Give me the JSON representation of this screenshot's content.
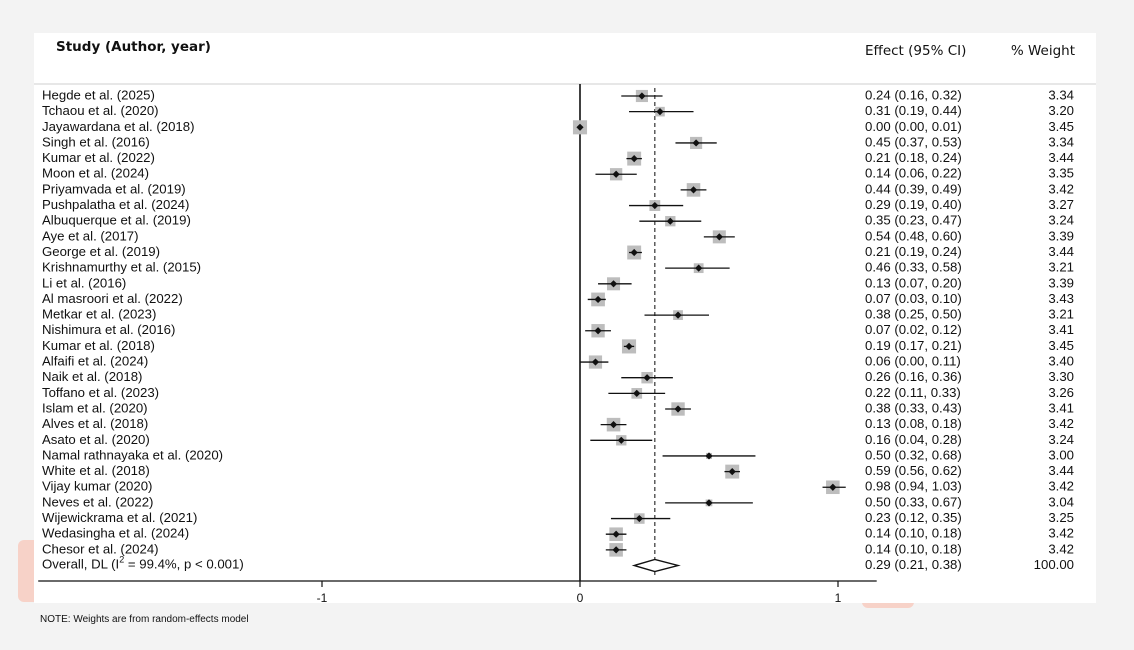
{
  "headers": {
    "study": "Study (Author, year)",
    "effect": "Effect (95% CI)",
    "weight": "% Weight"
  },
  "note": "NOTE: Weights are from random-effects model",
  "chart_data": {
    "type": "forest",
    "title": "",
    "xlabel": "",
    "ylabel": "",
    "x_ticks": [
      -1,
      0,
      1
    ],
    "x_tick_labels": [
      "-1",
      "0",
      "1"
    ],
    "xlim": [
      -2.1,
      1.15
    ],
    "null_line": 0,
    "pooled_line": 0.29,
    "studies": [
      {
        "label": "Hegde et al. (2025)",
        "es": 0.24,
        "lo": 0.16,
        "hi": 0.32,
        "ci_text": "0.24 (0.16, 0.32)",
        "weight": "3.34"
      },
      {
        "label": "Tchaou et al. (2020)",
        "es": 0.31,
        "lo": 0.19,
        "hi": 0.44,
        "ci_text": "0.31 (0.19, 0.44)",
        "weight": "3.20"
      },
      {
        "label": "Jayawardana et al. (2018)",
        "es": 0.0,
        "lo": 0.0,
        "hi": 0.01,
        "ci_text": "0.00 (0.00, 0.01)",
        "weight": "3.45"
      },
      {
        "label": "Singh et al. (2016)",
        "es": 0.45,
        "lo": 0.37,
        "hi": 0.53,
        "ci_text": "0.45 (0.37, 0.53)",
        "weight": "3.34"
      },
      {
        "label": "Kumar et al. (2022)",
        "es": 0.21,
        "lo": 0.18,
        "hi": 0.24,
        "ci_text": "0.21 (0.18, 0.24)",
        "weight": "3.44"
      },
      {
        "label": "Moon et al. (2024)",
        "es": 0.14,
        "lo": 0.06,
        "hi": 0.22,
        "ci_text": "0.14 (0.06, 0.22)",
        "weight": "3.35"
      },
      {
        "label": "Priyamvada et al. (2019)",
        "es": 0.44,
        "lo": 0.39,
        "hi": 0.49,
        "ci_text": "0.44 (0.39, 0.49)",
        "weight": "3.42"
      },
      {
        "label": "Pushpalatha et al. (2024)",
        "es": 0.29,
        "lo": 0.19,
        "hi": 0.4,
        "ci_text": "0.29 (0.19, 0.40)",
        "weight": "3.27"
      },
      {
        "label": "Albuquerque et al. (2019)",
        "es": 0.35,
        "lo": 0.23,
        "hi": 0.47,
        "ci_text": "0.35 (0.23, 0.47)",
        "weight": "3.24"
      },
      {
        "label": "Aye et al. (2017)",
        "es": 0.54,
        "lo": 0.48,
        "hi": 0.6,
        "ci_text": "0.54 (0.48, 0.60)",
        "weight": "3.39"
      },
      {
        "label": "George et al. (2019)",
        "es": 0.21,
        "lo": 0.19,
        "hi": 0.24,
        "ci_text": "0.21 (0.19, 0.24)",
        "weight": "3.44"
      },
      {
        "label": "Krishnamurthy et al. (2015)",
        "es": 0.46,
        "lo": 0.33,
        "hi": 0.58,
        "ci_text": "0.46 (0.33, 0.58)",
        "weight": "3.21"
      },
      {
        "label": "Li et al. (2016)",
        "es": 0.13,
        "lo": 0.07,
        "hi": 0.2,
        "ci_text": "0.13 (0.07, 0.20)",
        "weight": "3.39"
      },
      {
        "label": "Al masroori et al. (2022)",
        "es": 0.07,
        "lo": 0.03,
        "hi": 0.1,
        "ci_text": "0.07 (0.03, 0.10)",
        "weight": "3.43"
      },
      {
        "label": "Metkar et al. (2023)",
        "es": 0.38,
        "lo": 0.25,
        "hi": 0.5,
        "ci_text": "0.38 (0.25, 0.50)",
        "weight": "3.21"
      },
      {
        "label": "Nishimura et al. (2016)",
        "es": 0.07,
        "lo": 0.02,
        "hi": 0.12,
        "ci_text": "0.07 (0.02, 0.12)",
        "weight": "3.41"
      },
      {
        "label": "Kumar et al. (2018)",
        "es": 0.19,
        "lo": 0.17,
        "hi": 0.21,
        "ci_text": "0.19 (0.17, 0.21)",
        "weight": "3.45"
      },
      {
        "label": "Alfaifi et al. (2024)",
        "es": 0.06,
        "lo": 0.0,
        "hi": 0.11,
        "ci_text": "0.06 (0.00, 0.11)",
        "weight": "3.40"
      },
      {
        "label": "Naik et al. (2018)",
        "es": 0.26,
        "lo": 0.16,
        "hi": 0.36,
        "ci_text": "0.26 (0.16, 0.36)",
        "weight": "3.30"
      },
      {
        "label": "Toffano et al. (2023)",
        "es": 0.22,
        "lo": 0.11,
        "hi": 0.33,
        "ci_text": "0.22 (0.11, 0.33)",
        "weight": "3.26"
      },
      {
        "label": "Islam et al. (2020)",
        "es": 0.38,
        "lo": 0.33,
        "hi": 0.43,
        "ci_text": "0.38 (0.33, 0.43)",
        "weight": "3.41"
      },
      {
        "label": "Alves et al. (2018)",
        "es": 0.13,
        "lo": 0.08,
        "hi": 0.18,
        "ci_text": "0.13 (0.08, 0.18)",
        "weight": "3.42"
      },
      {
        "label": "Asato et al. (2020)",
        "es": 0.16,
        "lo": 0.04,
        "hi": 0.28,
        "ci_text": "0.16 (0.04, 0.28)",
        "weight": "3.24"
      },
      {
        "label": "Namal rathnayaka et al. (2020)",
        "es": 0.5,
        "lo": 0.32,
        "hi": 0.68,
        "ci_text": "0.50 (0.32, 0.68)",
        "weight": "3.00"
      },
      {
        "label": "White et al. (2018)",
        "es": 0.59,
        "lo": 0.56,
        "hi": 0.62,
        "ci_text": "0.59 (0.56, 0.62)",
        "weight": "3.44"
      },
      {
        "label": "Vijay kumar (2020)",
        "es": 0.98,
        "lo": 0.94,
        "hi": 1.03,
        "ci_text": "0.98 (0.94, 1.03)",
        "weight": "3.42"
      },
      {
        "label": "Neves et al. (2022)",
        "es": 0.5,
        "lo": 0.33,
        "hi": 0.67,
        "ci_text": "0.50 (0.33, 0.67)",
        "weight": "3.04"
      },
      {
        "label": "Wijewickrama et al. (2021)",
        "es": 0.23,
        "lo": 0.12,
        "hi": 0.35,
        "ci_text": "0.23 (0.12, 0.35)",
        "weight": "3.25"
      },
      {
        "label": "Wedasingha et al. (2024)",
        "es": 0.14,
        "lo": 0.1,
        "hi": 0.18,
        "ci_text": "0.14 (0.10, 0.18)",
        "weight": "3.42"
      },
      {
        "label": "Chesor et al. (2024)",
        "es": 0.14,
        "lo": 0.1,
        "hi": 0.18,
        "ci_text": "0.14 (0.10, 0.18)",
        "weight": "3.42"
      }
    ],
    "overall": {
      "label_prefix": "Overall, DL (I",
      "label_sup": "2",
      "label_suffix": " = 99.4%, p < 0.001)",
      "es": 0.29,
      "lo": 0.21,
      "hi": 0.38,
      "ci_text": "0.29 (0.21, 0.38)",
      "weight": "100.00"
    }
  }
}
